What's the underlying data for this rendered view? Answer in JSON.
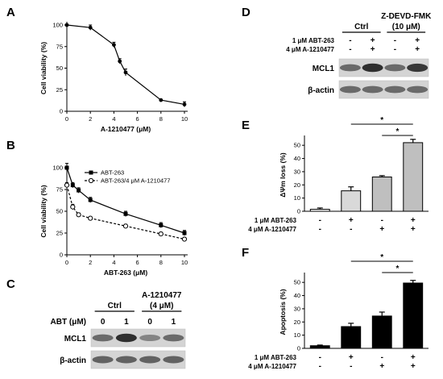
{
  "panel_letters": {
    "A": "A",
    "B": "B",
    "C": "C",
    "D": "D",
    "E": "E",
    "F": "F"
  },
  "chart_data": [
    {
      "panel": "A",
      "type": "line",
      "xlabel": "A-1210477 (μM)",
      "ylabel": "Cell viability (%)",
      "xlim": [
        0,
        10
      ],
      "ylim": [
        0,
        100
      ],
      "xticks": [
        "0",
        "2",
        "4",
        "6",
        "8",
        "10"
      ],
      "yticks": [
        "0",
        "25",
        "50",
        "75",
        "100"
      ],
      "series": [
        {
          "x": [
            0,
            2,
            4,
            4.5,
            5,
            8,
            10
          ],
          "y": [
            100,
            97,
            77,
            58,
            45,
            13,
            8
          ],
          "err": [
            0,
            3,
            3,
            3,
            4,
            0,
            3
          ],
          "marker": "filled",
          "dash": false
        }
      ]
    },
    {
      "panel": "B",
      "type": "line",
      "xlabel": "ABT-263 (μM)",
      "ylabel": "Cell viability (%)",
      "xlim": [
        0,
        10
      ],
      "ylim": [
        0,
        100
      ],
      "xticks": [
        "0",
        "2",
        "4",
        "6",
        "8",
        "10"
      ],
      "yticks": [
        "0",
        "25",
        "50",
        "75",
        "100"
      ],
      "legend": "top-right",
      "series": [
        {
          "name": "ABT-263",
          "x": [
            0,
            0.5,
            1,
            2,
            5,
            8,
            10
          ],
          "y": [
            100,
            80,
            74,
            63,
            47,
            34,
            25
          ],
          "err": [
            5,
            3,
            3,
            3,
            3,
            3,
            3
          ],
          "marker": "filled-square",
          "dash": false
        },
        {
          "name": "ABT-263/4 μM A-1210477",
          "x": [
            0,
            0.5,
            1,
            2,
            5,
            8,
            10
          ],
          "y": [
            80,
            55,
            46,
            42,
            33,
            24,
            18
          ],
          "err": [
            3,
            3,
            2,
            2,
            2,
            2,
            2
          ],
          "marker": "open-circle",
          "dash": true
        }
      ]
    },
    {
      "panel": "E",
      "type": "bar",
      "ylabel": "ΔΨm loss (%)",
      "ylim": [
        0,
        55
      ],
      "yticks": [
        "0",
        "10",
        "20",
        "30",
        "40",
        "50"
      ],
      "conditions": [
        {
          "label": "1 μM ABT-263",
          "signs": [
            "-",
            "+",
            "-",
            "+"
          ]
        },
        {
          "label": "4 μM A-1210477",
          "signs": [
            "-",
            "-",
            "+",
            "+"
          ]
        }
      ],
      "values": [
        1.5,
        15.5,
        26,
        52
      ],
      "err": [
        1,
        3,
        1,
        2.5
      ],
      "colors": [
        "#ffffff",
        "#d9d9d9",
        "#bfbfbf",
        "#bfbfbf"
      ],
      "significance": [
        {
          "label": "*",
          "from": 1,
          "to": 3
        },
        {
          "label": "*",
          "from": 2,
          "to": 3
        }
      ]
    },
    {
      "panel": "F",
      "type": "bar",
      "ylabel": "Apoptosis (%)",
      "ylim": [
        0,
        55
      ],
      "yticks": [
        "0",
        "10",
        "20",
        "30",
        "40",
        "50"
      ],
      "conditions": [
        {
          "label": "1 μM ABT-263",
          "signs": [
            "-",
            "+",
            "-",
            "+"
          ]
        },
        {
          "label": "4 μM A-1210477",
          "signs": [
            "-",
            "-",
            "+",
            "+"
          ]
        }
      ],
      "values": [
        2,
        16.5,
        24.5,
        49.5
      ],
      "err": [
        0.5,
        2.5,
        3,
        2
      ],
      "colors": [
        "#000000",
        "#000000",
        "#000000",
        "#000000"
      ],
      "significance": [
        {
          "label": "*",
          "from": 1,
          "to": 3
        },
        {
          "label": "*",
          "from": 2,
          "to": 3
        }
      ]
    }
  ],
  "blot_C": {
    "row_label": "ABT (μM)",
    "groups": [
      {
        "name": "Ctrl",
        "sub": ""
      },
      {
        "name": "A-1210477",
        "sub": "(4 μM)"
      }
    ],
    "lanes": [
      "0",
      "1",
      "0",
      "1"
    ],
    "bands": [
      {
        "name": "MCL1",
        "intensity": [
          0.55,
          0.9,
          0.4,
          0.55
        ]
      },
      {
        "name": "β-actin",
        "intensity": [
          0.6,
          0.6,
          0.6,
          0.6
        ]
      }
    ]
  },
  "blot_D": {
    "groups": [
      {
        "name": "Ctrl",
        "sub": ""
      },
      {
        "name": "Z-DEVD-FMK",
        "sub": "(10 μM)"
      }
    ],
    "conditions": [
      {
        "label": "1 μM ABT-263",
        "signs": [
          "-",
          "+",
          "-",
          "+"
        ]
      },
      {
        "label": "4 μM A-1210477",
        "signs": [
          "-",
          "+",
          "-",
          "+"
        ]
      }
    ],
    "bands": [
      {
        "name": "MCL1",
        "intensity": [
          0.55,
          0.9,
          0.55,
          0.85
        ]
      },
      {
        "name": "β-actin",
        "intensity": [
          0.55,
          0.55,
          0.55,
          0.55
        ]
      }
    ]
  }
}
